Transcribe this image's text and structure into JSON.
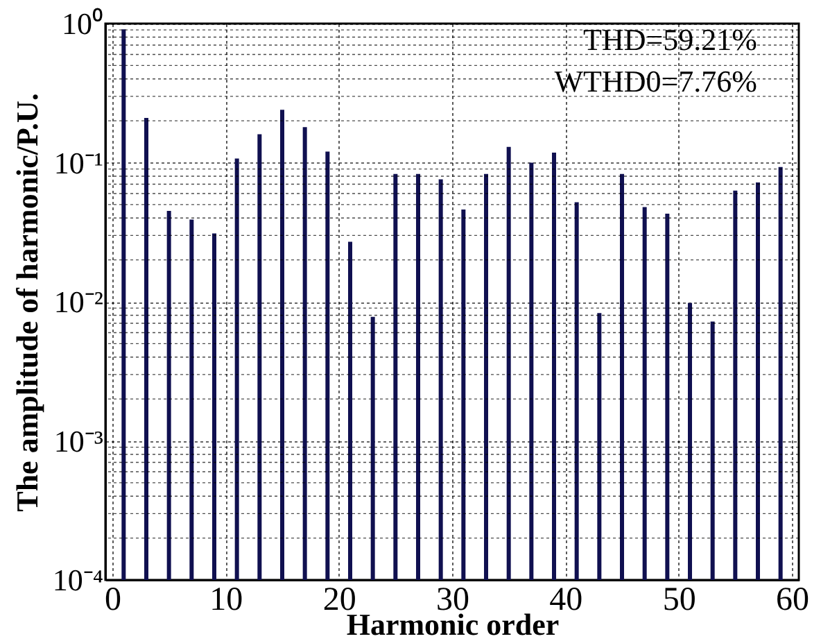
{
  "chart_data": {
    "type": "bar",
    "xlabel": "Harmonic order",
    "ylabel": "The amplitude of harmonic/P.U.",
    "x": [
      1,
      3,
      5,
      7,
      9,
      11,
      13,
      15,
      17,
      19,
      21,
      23,
      25,
      27,
      29,
      31,
      33,
      35,
      37,
      39,
      41,
      43,
      45,
      47,
      49,
      51,
      53,
      55,
      57,
      59
    ],
    "values": [
      0.91,
      0.21,
      0.045,
      0.039,
      0.031,
      0.107,
      0.16,
      0.24,
      0.18,
      0.12,
      0.027,
      0.0078,
      0.083,
      0.083,
      0.076,
      0.046,
      0.083,
      0.13,
      0.1,
      0.118,
      0.052,
      0.0083,
      0.083,
      0.048,
      0.043,
      0.0098,
      0.0072,
      0.063,
      0.072,
      0.093
    ],
    "color": "#101050",
    "log": "y",
    "grid": true,
    "xlim": [
      0,
      60
    ],
    "xticks": [
      0,
      10,
      20,
      30,
      40,
      50,
      60
    ],
    "ylim": [
      0.0001,
      1
    ],
    "yticks": [
      {
        "value": 0.0001,
        "label": "10⁻⁴"
      },
      {
        "value": 0.001,
        "label": "10⁻³"
      },
      {
        "value": 0.01,
        "label": "10⁻²"
      },
      {
        "value": 0.1,
        "label": "10⁻¹"
      },
      {
        "value": 1,
        "label": "10⁰"
      }
    ],
    "annotations": [
      "THD=59.21%",
      "WTHD0=7.76%"
    ]
  }
}
